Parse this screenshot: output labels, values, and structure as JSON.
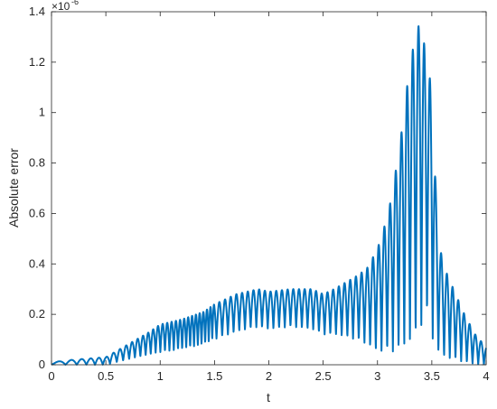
{
  "chart_data": {
    "type": "line",
    "title": "",
    "xlabel": "t",
    "ylabel": "Absolute error",
    "y_exponent_label": "×10",
    "y_exponent_power": "-6",
    "xlim": [
      0,
      4
    ],
    "ylim": [
      0,
      1.4
    ],
    "grid": false,
    "x_ticks": [
      0,
      0.5,
      1,
      1.5,
      2,
      2.5,
      3,
      3.5,
      4
    ],
    "x_tick_labels": [
      "0",
      "0.5",
      "1",
      "1.5",
      "2",
      "2.5",
      "3",
      "3.5",
      "4"
    ],
    "y_ticks": [
      0,
      0.2,
      0.4,
      0.6,
      0.8,
      1,
      1.2,
      1.4
    ],
    "y_tick_labels": [
      "0",
      "0.2",
      "0.4",
      "0.6",
      "0.8",
      "1",
      "1.2",
      "1.4"
    ],
    "series_color": "#0072BD",
    "envelope": {
      "x": [
        0,
        0.2,
        0.5,
        0.7,
        0.9,
        1.0,
        1.2,
        1.4,
        1.5,
        1.7,
        1.9,
        2.0,
        2.2,
        2.4,
        2.5,
        2.6,
        2.8,
        2.9,
        3.0,
        3.1,
        3.2,
        3.3,
        3.35,
        3.4,
        3.45,
        3.5,
        3.55,
        3.6,
        3.7,
        3.8,
        3.9,
        4.0
      ],
      "peak": [
        0.01,
        0.02,
        0.03,
        0.08,
        0.13,
        0.16,
        0.18,
        0.21,
        0.24,
        0.28,
        0.3,
        0.29,
        0.3,
        0.3,
        0.28,
        0.3,
        0.35,
        0.38,
        0.46,
        0.6,
        0.85,
        1.2,
        1.3,
        1.38,
        1.2,
        1.1,
        0.55,
        0.4,
        0.3,
        0.2,
        0.12,
        0.07
      ],
      "trough": [
        0,
        0,
        0,
        0.02,
        0.04,
        0.05,
        0.06,
        0.08,
        0.1,
        0.13,
        0.15,
        0.14,
        0.15,
        0.14,
        0.12,
        0.12,
        0.1,
        0.08,
        0.05,
        0.05,
        0.05,
        0.08,
        0.1,
        0.15,
        0.2,
        0.1,
        0.05,
        0.03,
        0.02,
        0.01,
        0,
        0
      ]
    },
    "oscillation_frequency": 60
  }
}
